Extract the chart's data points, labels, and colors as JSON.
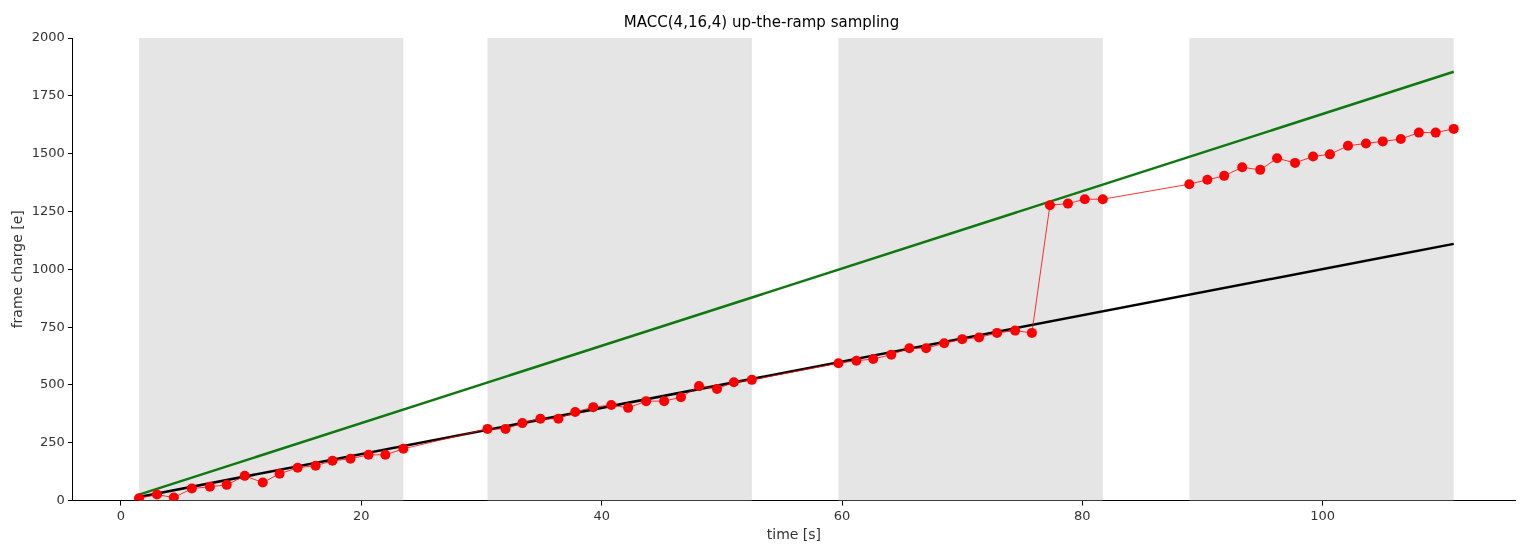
{
  "chart_data": {
    "type": "line",
    "title": "MACC(4,16,4) up-the-ramp sampling",
    "xlabel": "time [s]",
    "ylabel": "frame charge [e]",
    "xlim": [
      -4,
      116
    ],
    "xticks": [
      0,
      20,
      40,
      60,
      80,
      100
    ],
    "ylim": [
      0,
      2000
    ],
    "yticks": [
      0,
      250,
      500,
      750,
      1000,
      1250,
      1500,
      1750,
      2000
    ],
    "grid": false,
    "legend": false,
    "bands": [
      {
        "axis": "x",
        "from": 1.5,
        "to": 23.5,
        "color": "#e5e5e5"
      },
      {
        "axis": "x",
        "from": 30.5,
        "to": 52.5,
        "color": "#e5e5e5"
      },
      {
        "axis": "x",
        "from": 59.7,
        "to": 81.7,
        "color": "#e5e5e5"
      },
      {
        "axis": "x",
        "from": 88.9,
        "to": 110.9,
        "color": "#e5e5e5"
      }
    ],
    "series": [
      {
        "color": "#000000",
        "marker": "none",
        "x": [
          1.5,
          110.9
        ],
        "values": [
          16,
          1110
        ]
      },
      {
        "color": "#107810",
        "marker": "none",
        "x": [
          1.5,
          110.9
        ],
        "values": [
          26,
          1854
        ]
      },
      {
        "color": "#ff0000",
        "marker": "circle",
        "line_style": "solid",
        "x": [
          1.5,
          3.0,
          4.4,
          5.9,
          7.4,
          8.8,
          10.3,
          11.8,
          13.2,
          14.7,
          16.2,
          17.6,
          19.1,
          20.6,
          22.0,
          23.5,
          30.5,
          32.0,
          33.4,
          34.9,
          36.4,
          37.8,
          39.3,
          40.8,
          42.2,
          43.7,
          45.2,
          46.6,
          48.1,
          49.6,
          51.0,
          52.5,
          59.7,
          61.2,
          62.6,
          64.1,
          65.6,
          67.0,
          68.5,
          70.0,
          71.4,
          72.9,
          74.4,
          75.8,
          77.3,
          78.8,
          80.2,
          81.7,
          88.9,
          90.4,
          91.8,
          93.3,
          94.8,
          96.2,
          97.7,
          99.2,
          100.6,
          102.1,
          103.6,
          105.0,
          106.5,
          108.0,
          109.4,
          110.9
        ],
        "values": [
          10,
          26,
          13,
          52,
          60,
          68,
          107,
          78,
          116,
          142,
          151,
          172,
          181,
          198,
          198,
          224,
          310,
          310,
          335,
          354,
          354,
          383,
          404,
          413,
          401,
          430,
          430,
          447,
          495,
          483,
          512,
          522,
          594,
          605,
          612,
          631,
          659,
          659,
          680,
          698,
          705,
          725,
          735,
          725,
          1277,
          1284,
          1303,
          1303,
          1368,
          1387,
          1404,
          1441,
          1430,
          1480,
          1460,
          1488,
          1497,
          1534,
          1544,
          1553,
          1563,
          1591,
          1591,
          1607
        ]
      }
    ]
  }
}
